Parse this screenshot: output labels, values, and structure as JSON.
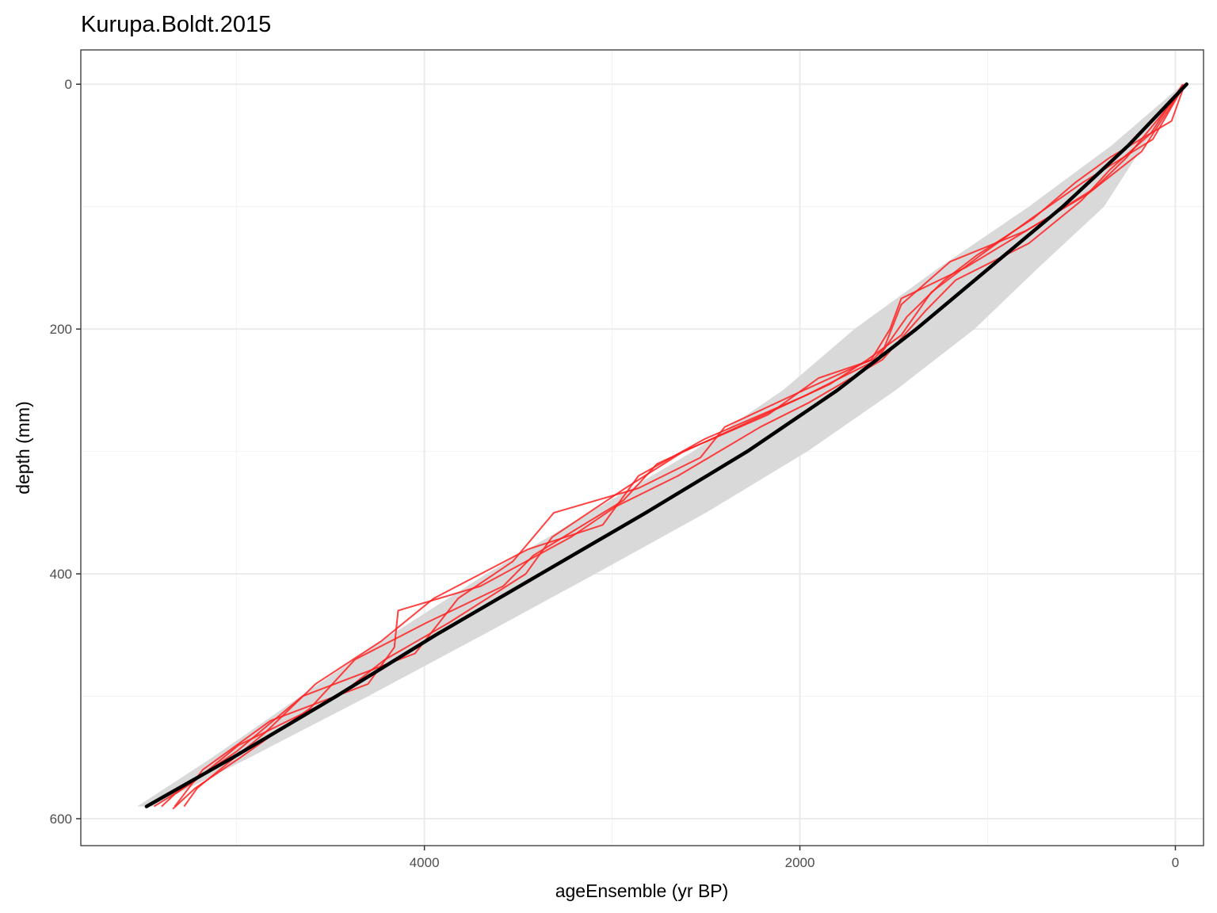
{
  "chart_data": {
    "type": "line",
    "title": "Kurupa.Boldt.2015",
    "xlabel": "ageEnsemble (yr BP)",
    "ylabel": "depth (mm)",
    "x_reversed": true,
    "y_reversed": true,
    "xlim": [
      5830,
      -150
    ],
    "ylim": [
      -28,
      622
    ],
    "x_ticks": [
      4000,
      2000,
      0
    ],
    "y_ticks": [
      0,
      200,
      400,
      600
    ],
    "grid": true,
    "colors": {
      "median": "#000000",
      "ensemble": "#ff2020",
      "band": "#d9d9d9"
    },
    "uncertainty_band": {
      "depth": [
        0,
        50,
        100,
        150,
        200,
        250,
        300,
        350,
        400,
        450,
        500,
        550,
        590
      ],
      "age_lower": [
        -60,
        170,
        380,
        730,
        1070,
        1490,
        1960,
        2500,
        3090,
        3690,
        4300,
        4930,
        5450
      ],
      "age_upper": [
        -40,
        340,
        780,
        1260,
        1710,
        2090,
        2570,
        3120,
        3670,
        4180,
        4660,
        5130,
        5530
      ]
    },
    "series": [
      {
        "role": "median",
        "depth": [
          0,
          50,
          100,
          150,
          200,
          225,
          250,
          300,
          350,
          400,
          450,
          500,
          550,
          590
        ],
        "age": [
          -60,
          250,
          600,
          990,
          1380,
          1590,
          1800,
          2280,
          2820,
          3380,
          3940,
          4470,
          5020,
          5480
        ]
      },
      {
        "role": "ensemble",
        "depth": [
          0,
          30,
          60,
          80,
          110,
          140,
          160,
          190,
          225,
          255,
          290,
          320,
          360,
          380,
          420,
          455,
          490,
          530,
          575,
          590
        ],
        "age": [
          -50,
          20,
          350,
          530,
          760,
          1060,
          1230,
          1430,
          1590,
          1980,
          2510,
          2860,
          3050,
          3450,
          3950,
          4230,
          4580,
          4850,
          5210,
          5280
        ]
      },
      {
        "role": "ensemble",
        "depth": [
          0,
          40,
          70,
          95,
          130,
          160,
          185,
          225,
          260,
          280,
          320,
          345,
          370,
          410,
          430,
          460,
          490,
          520,
          560,
          590
        ],
        "age": [
          -40,
          130,
          350,
          500,
          780,
          1170,
          1330,
          1560,
          1950,
          2210,
          2650,
          2980,
          3220,
          3700,
          4140,
          4160,
          4300,
          4820,
          5180,
          5330
        ]
      },
      {
        "role": "ensemble",
        "depth": [
          0,
          60,
          85,
          110,
          150,
          175,
          200,
          225,
          250,
          280,
          305,
          330,
          350,
          390,
          420,
          465,
          500,
          545,
          580,
          590
        ],
        "age": [
          -60,
          260,
          430,
          690,
          1120,
          1460,
          1520,
          1620,
          1980,
          2400,
          2530,
          2860,
          3310,
          3530,
          3820,
          4050,
          4650,
          5000,
          5330,
          5400
        ]
      },
      {
        "role": "ensemble",
        "depth": [
          0,
          55,
          90,
          120,
          145,
          180,
          215,
          225,
          240,
          270,
          300,
          330,
          370,
          400,
          440,
          470,
          500,
          540,
          570,
          590
        ],
        "age": [
          -50,
          180,
          470,
          800,
          1200,
          1460,
          1550,
          1610,
          1900,
          2170,
          2620,
          2930,
          3320,
          3460,
          3870,
          4210,
          4460,
          4990,
          5230,
          5440
        ]
      },
      {
        "role": "ensemble",
        "depth": [
          0,
          45,
          80,
          110,
          140,
          170,
          205,
          225,
          245,
          280,
          310,
          340,
          385,
          410,
          440,
          470,
          510,
          550,
          575,
          592
        ],
        "age": [
          -50,
          120,
          490,
          770,
          1040,
          1300,
          1460,
          1640,
          1840,
          2330,
          2760,
          2940,
          3420,
          3580,
          3990,
          4370,
          4610,
          4980,
          5220,
          5340
        ]
      }
    ]
  }
}
